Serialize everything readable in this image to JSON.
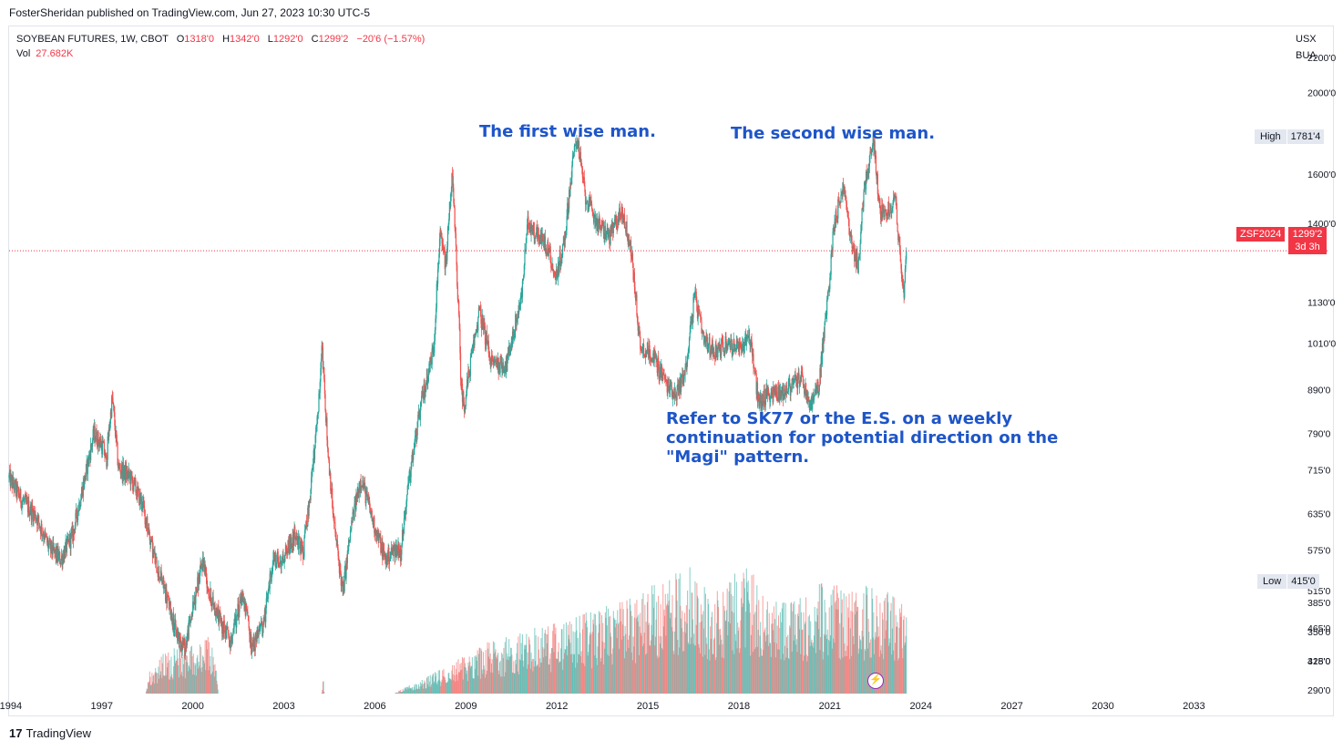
{
  "attribution": "FosterSheridan published on TradingView.com, Jun 27, 2023 10:30 UTC-5",
  "legend": {
    "symbol": "SOYBEAN FUTURES, 1W, CBOT",
    "open_label": "O",
    "open": "1318'0",
    "high_label": "H",
    "high": "1342'0",
    "low_label": "L",
    "low": "1292'0",
    "close_label": "C",
    "close": "1299'2",
    "change": "−20'6 (−1.57%)",
    "vol_label": "Vol",
    "vol": "27.682K"
  },
  "annotations": {
    "first": "The first wise man.",
    "second": "The second wise man.",
    "note": "Refer to SK77 or the E.S. on a weekly continuation for potential direction on the \"Magi\" pattern."
  },
  "price_scale": {
    "currency": "USX",
    "unit": "BUA"
  },
  "markers": {
    "high_label": "High",
    "high_value": "1781'4",
    "low_label": "Low",
    "low_value": "415'0",
    "ticker": "ZSF2024",
    "last_price": "1299'2",
    "countdown": "3d 3h"
  },
  "footer": {
    "logo": "TradingView",
    "logo_mark": "17"
  },
  "colors": {
    "up": "#26a69a",
    "down": "#ef5350",
    "annotation": "#1e55c8",
    "last": "#f23645"
  },
  "chart_data": {
    "type": "candlestick",
    "title": "SOYBEAN FUTURES, 1W, CBOT",
    "scale": "log",
    "y_ticks": [
      {
        "value": 2200,
        "label": "2200'0"
      },
      {
        "value": 2000,
        "label": "2000'0"
      },
      {
        "value": 1600,
        "label": "1600'0"
      },
      {
        "value": 1400,
        "label": "1400'0"
      },
      {
        "value": 1130,
        "label": "1130'0"
      },
      {
        "value": 1010,
        "label": "1010'0"
      },
      {
        "value": 890,
        "label": "890'0"
      },
      {
        "value": 790,
        "label": "790'0"
      },
      {
        "value": 715,
        "label": "715'0"
      },
      {
        "value": 635,
        "label": "635'0"
      },
      {
        "value": 575,
        "label": "575'0"
      },
      {
        "value": 515,
        "label": "515'0"
      },
      {
        "value": 465,
        "label": "465'0"
      },
      {
        "value": 425,
        "label": "425'0"
      },
      {
        "value": 385,
        "label": "385'0"
      },
      {
        "value": 350,
        "label": "350'0"
      },
      {
        "value": 318,
        "label": "318'0"
      },
      {
        "value": 290,
        "label": "290'0"
      }
    ],
    "x_ticks": [
      "1994",
      "1997",
      "2000",
      "2003",
      "2006",
      "2009",
      "2012",
      "2015",
      "2018",
      "2021",
      "2024",
      "2027",
      "2030",
      "2033"
    ],
    "x_range": [
      1993.9,
      2035.8
    ],
    "last_date": 2023.49,
    "last_price": 1299.25,
    "high": 1781.5,
    "low": 415,
    "price_path": [
      [
        1993.9,
        700
      ],
      [
        1994.3,
        660
      ],
      [
        1994.8,
        630
      ],
      [
        1995.2,
        580
      ],
      [
        1995.6,
        560
      ],
      [
        1996.0,
        600
      ],
      [
        1996.4,
        700
      ],
      [
        1996.7,
        790
      ],
      [
        1997.0,
        760
      ],
      [
        1997.1,
        730
      ],
      [
        1997.3,
        870
      ],
      [
        1997.5,
        720
      ],
      [
        1997.9,
        700
      ],
      [
        1998.3,
        650
      ],
      [
        1998.7,
        560
      ],
      [
        1999.0,
        520
      ],
      [
        1999.4,
        460
      ],
      [
        1999.7,
        440
      ],
      [
        2000.0,
        500
      ],
      [
        2000.3,
        560
      ],
      [
        2000.5,
        510
      ],
      [
        2000.9,
        470
      ],
      [
        2001.2,
        450
      ],
      [
        2001.6,
        510
      ],
      [
        2001.9,
        440
      ],
      [
        2002.3,
        470
      ],
      [
        2002.6,
        560
      ],
      [
        2002.9,
        560
      ],
      [
        2003.3,
        600
      ],
      [
        2003.6,
        570
      ],
      [
        2003.9,
        710
      ],
      [
        2004.1,
        850
      ],
      [
        2004.2,
        1010
      ],
      [
        2004.4,
        760
      ],
      [
        2004.6,
        620
      ],
      [
        2004.9,
        510
      ],
      [
        2005.2,
        620
      ],
      [
        2005.5,
        700
      ],
      [
        2005.9,
        620
      ],
      [
        2006.3,
        560
      ],
      [
        2006.7,
        580
      ],
      [
        2006.8,
        570
      ],
      [
        2007.1,
        700
      ],
      [
        2007.5,
        860
      ],
      [
        2007.9,
        1000
      ],
      [
        2008.1,
        1350
      ],
      [
        2008.3,
        1250
      ],
      [
        2008.5,
        1600
      ],
      [
        2008.8,
        900
      ],
      [
        2008.9,
        850
      ],
      [
        2009.4,
        1100
      ],
      [
        2009.8,
        960
      ],
      [
        2010.3,
        950
      ],
      [
        2010.8,
        1150
      ],
      [
        2011.0,
        1400
      ],
      [
        2011.4,
        1350
      ],
      [
        2011.7,
        1300
      ],
      [
        2011.9,
        1200
      ],
      [
        2012.2,
        1330
      ],
      [
        2012.6,
        1781
      ],
      [
        2012.9,
        1500
      ],
      [
        2013.3,
        1400
      ],
      [
        2013.7,
        1350
      ],
      [
        2014.1,
        1450
      ],
      [
        2014.4,
        1300
      ],
      [
        2014.7,
        1000
      ],
      [
        2015.1,
        980
      ],
      [
        2015.6,
        900
      ],
      [
        2015.9,
        880
      ],
      [
        2016.2,
        940
      ],
      [
        2016.5,
        1150
      ],
      [
        2016.8,
        1010
      ],
      [
        2017.2,
        990
      ],
      [
        2017.6,
        1010
      ],
      [
        2018.0,
        990
      ],
      [
        2018.3,
        1040
      ],
      [
        2018.6,
        860
      ],
      [
        2018.9,
        880
      ],
      [
        2019.3,
        880
      ],
      [
        2019.7,
        900
      ],
      [
        2020.0,
        920
      ],
      [
        2020.3,
        850
      ],
      [
        2020.6,
        900
      ],
      [
        2020.9,
        1150
      ],
      [
        2021.1,
        1400
      ],
      [
        2021.4,
        1550
      ],
      [
        2021.7,
        1300
      ],
      [
        2021.9,
        1250
      ],
      [
        2022.1,
        1550
      ],
      [
        2022.4,
        1750
      ],
      [
        2022.6,
        1450
      ],
      [
        2022.9,
        1450
      ],
      [
        2023.1,
        1510
      ],
      [
        2023.3,
        1250
      ],
      [
        2023.4,
        1140
      ],
      [
        2023.49,
        1299
      ]
    ],
    "volume_envelope": [
      [
        1993.9,
        0
      ],
      [
        1998.4,
        0
      ],
      [
        1998.5,
        25
      ],
      [
        1999.0,
        45
      ],
      [
        1999.6,
        55
      ],
      [
        2000.2,
        55
      ],
      [
        2000.5,
        65
      ],
      [
        2000.7,
        40
      ],
      [
        2000.8,
        0
      ],
      [
        2004.2,
        0
      ],
      [
        2004.25,
        20
      ],
      [
        2004.3,
        0
      ],
      [
        2006.6,
        0
      ],
      [
        2007.0,
        8
      ],
      [
        2007.5,
        15
      ],
      [
        2008.0,
        25
      ],
      [
        2008.8,
        40
      ],
      [
        2009.5,
        55
      ],
      [
        2010.5,
        65
      ],
      [
        2011.5,
        75
      ],
      [
        2012.5,
        85
      ],
      [
        2013.5,
        95
      ],
      [
        2014.5,
        110
      ],
      [
        2015.5,
        125
      ],
      [
        2016.3,
        145
      ],
      [
        2017.0,
        110
      ],
      [
        2018.2,
        145
      ],
      [
        2019.0,
        100
      ],
      [
        2020.0,
        105
      ],
      [
        2020.8,
        125
      ],
      [
        2021.5,
        115
      ],
      [
        2022.1,
        120
      ],
      [
        2023.0,
        110
      ],
      [
        2023.49,
        100
      ]
    ]
  }
}
